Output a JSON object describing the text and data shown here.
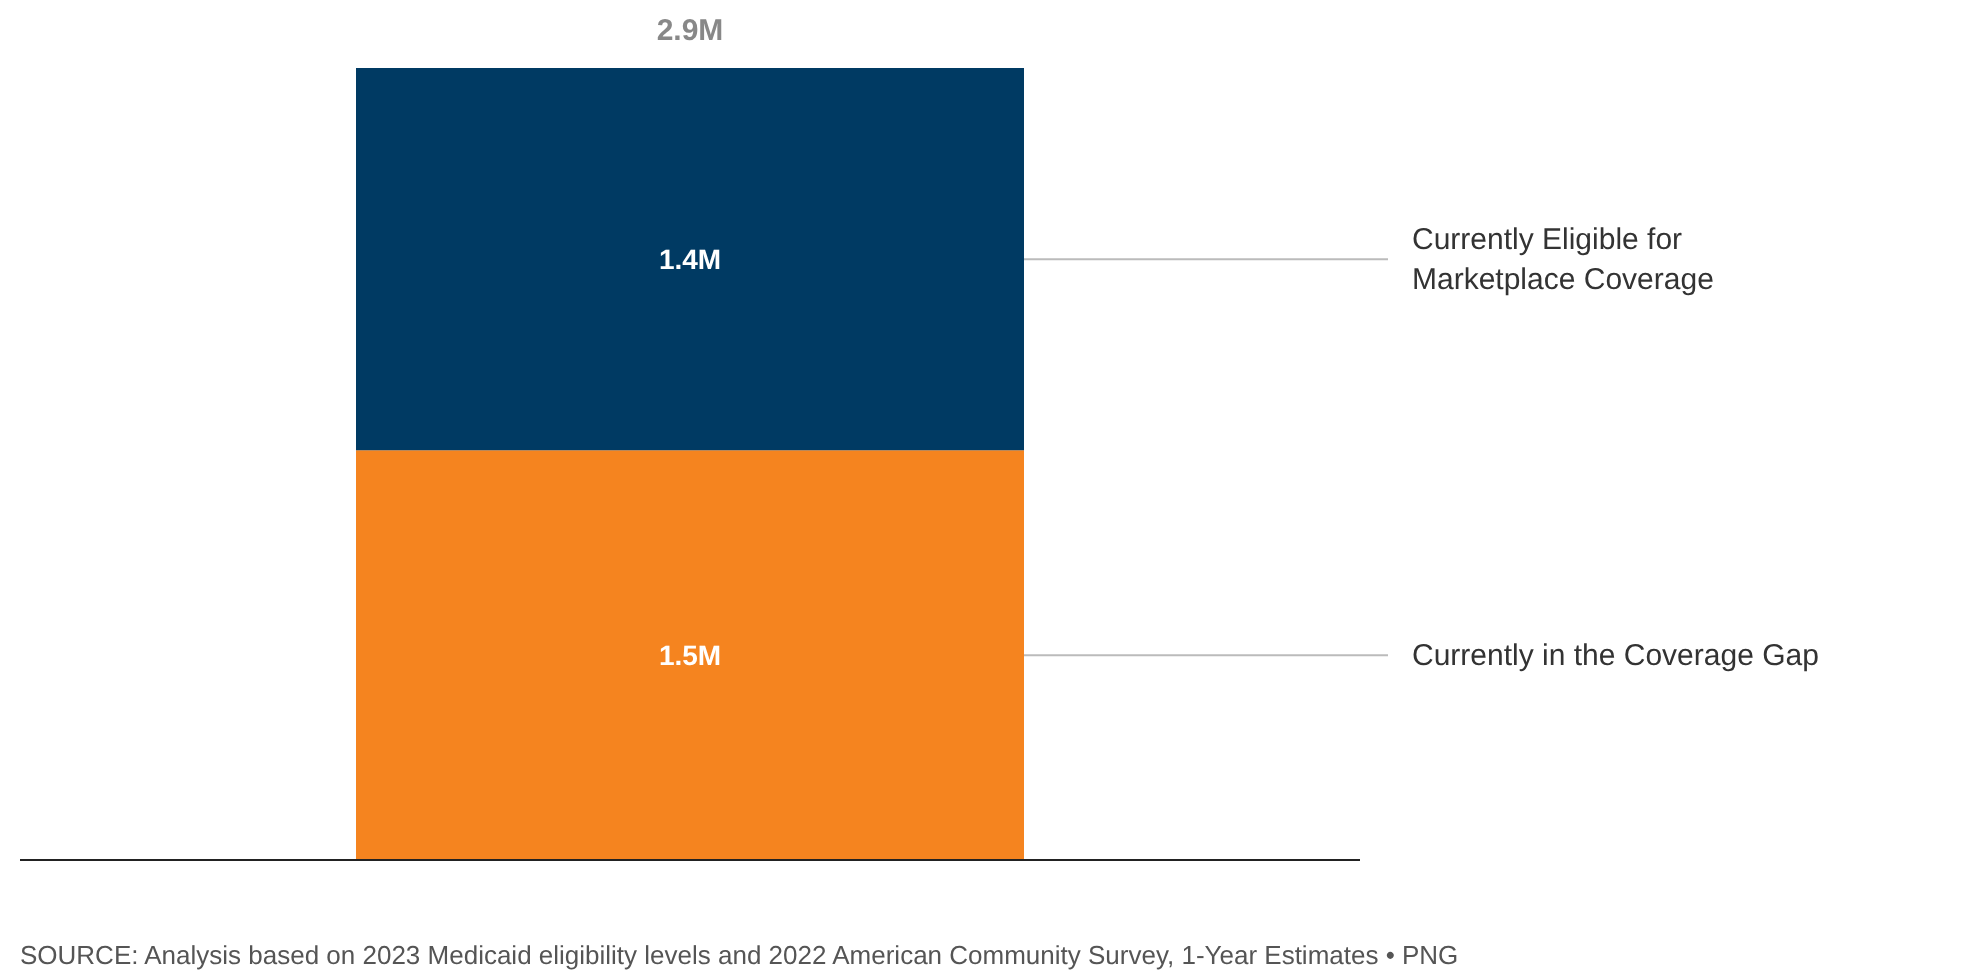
{
  "chart_data": {
    "type": "bar",
    "stacked": true,
    "categories": [
      null
    ],
    "series": [
      {
        "name": "Currently in the Coverage Gap",
        "color": "#f5841f",
        "values": [
          1.5
        ],
        "value_labels": [
          "1.5M"
        ]
      },
      {
        "name": "Currently Eligible for Marketplace Coverage",
        "color": "#003a63",
        "values": [
          1.4
        ],
        "value_labels": [
          "1.4M"
        ]
      }
    ],
    "totals": [
      "2.9M"
    ],
    "annotations": [
      "SOURCE: Analysis based on 2023 Medicaid eligibility levels and 2022 American Community Survey, 1-Year Estimates • PNG"
    ],
    "legend": false,
    "grid": false
  }
}
